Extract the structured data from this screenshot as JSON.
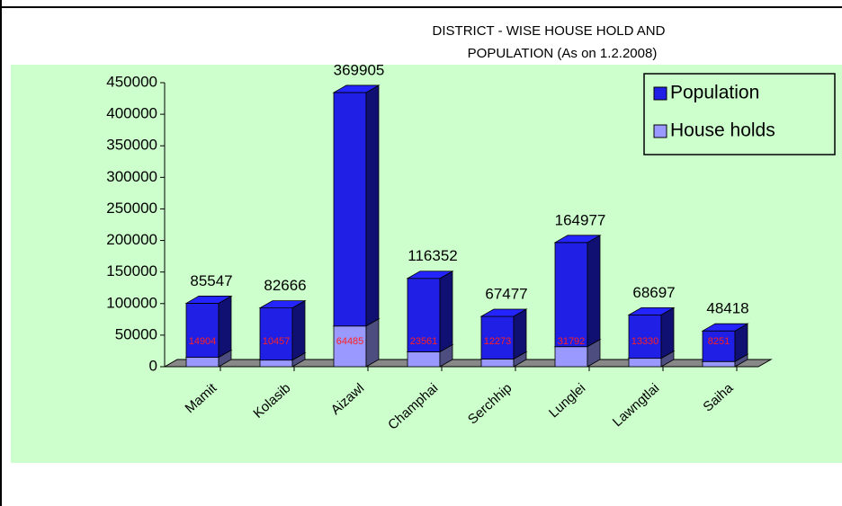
{
  "chart_data": {
    "type": "stacked_bar_3d",
    "title": [
      "DISTRICT -  WISE HOUSE HOLD AND",
      "POPULATION  (As on 1.2.2008)"
    ],
    "categories": [
      "Mamit",
      "Kolasib",
      "Aizawl",
      "Champhai",
      "Serchhip",
      "Lunglei",
      "Lawngtlai",
      "Saiha"
    ],
    "series": [
      {
        "name": "Population",
        "color": "#1f1fe6",
        "values": [
          85547,
          82666,
          369905,
          116352,
          67477,
          164977,
          68697,
          48418
        ]
      },
      {
        "name": "House holds",
        "color": "#9999ff",
        "values": [
          14904,
          10457,
          64485,
          23561,
          12273,
          31792,
          13330,
          8251
        ]
      }
    ],
    "stack_order": [
      1,
      0
    ],
    "ylim": [
      0,
      450000
    ],
    "yticks": [
      0,
      50000,
      100000,
      150000,
      200000,
      250000,
      300000,
      350000,
      400000,
      450000
    ],
    "legend": "top-right",
    "background": "#ccffcc"
  }
}
